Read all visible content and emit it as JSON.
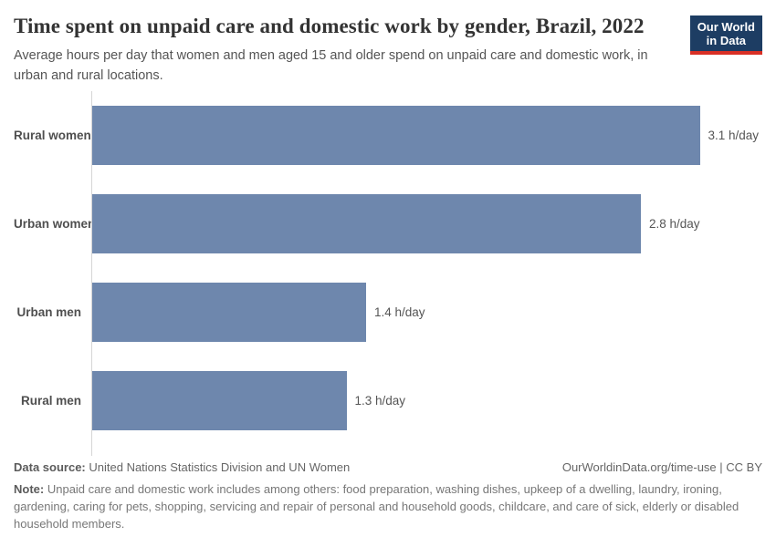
{
  "header": {
    "title": "Time spent on unpaid care and domestic work by gender, Brazil, 2022",
    "subtitle": "Average hours per day that women and men aged 15 and older spend on unpaid care and domestic work, in urban and rural locations.",
    "logo": {
      "line1": "Our World",
      "line2": "in Data"
    }
  },
  "chart_data": {
    "type": "bar",
    "orientation": "horizontal",
    "title": "Time spent on unpaid care and domestic work by gender, Brazil, 2022",
    "categories": [
      "Rural women",
      "Urban women",
      "Urban men",
      "Rural men"
    ],
    "values": [
      3.1,
      2.8,
      1.4,
      1.3
    ],
    "value_labels": [
      "3.1 h/day",
      "2.8 h/day",
      "1.4 h/day",
      "1.3 h/day"
    ],
    "unit": "h/day",
    "xlim": [
      0,
      3.45
    ],
    "grid": false,
    "legend": "none",
    "bar_color": "#6e87ad"
  },
  "footer": {
    "data_source_label": "Data source:",
    "data_source": "United Nations Statistics Division and UN Women",
    "link": "OurWorldinData.org/time-use | CC BY",
    "note_label": "Note:",
    "note": "Unpaid care and domestic work includes among others: food preparation, washing dishes, upkeep of a dwelling, laundry, ironing, gardening, caring for pets, shopping, servicing and repair of personal and household goods, childcare, and care of sick, elderly or disabled household members."
  },
  "colors": {
    "bar": "#6e87ad",
    "axis_line": "#d5d5d5",
    "logo_navy": "#1d3d63",
    "logo_red": "#d93025",
    "title_text": "#333333",
    "body_text": "#555555",
    "note_text": "#777777"
  }
}
